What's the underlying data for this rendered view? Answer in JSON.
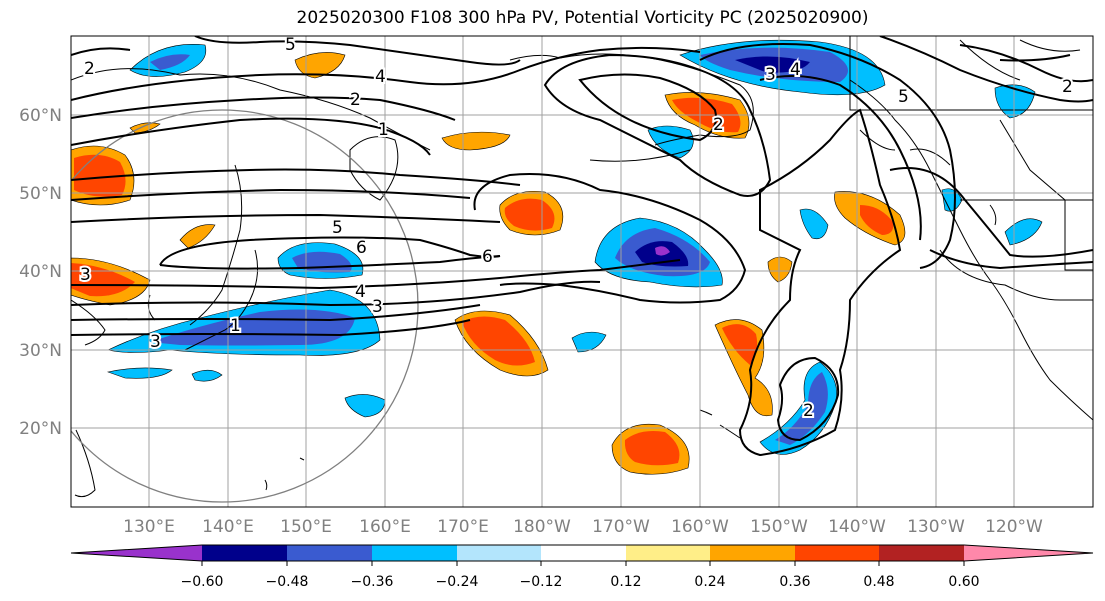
{
  "title": "2025020300 F108 300 hPa PV, Potential Vorticity PC (2025020900)",
  "map": {
    "lat_labels": [
      "60°N",
      "50°N",
      "40°N",
      "30°N",
      "20°N"
    ],
    "lon_labels": [
      "130°E",
      "140°E",
      "150°E",
      "160°E",
      "170°E",
      "180°W",
      "170°W",
      "160°W",
      "150°W",
      "140°W",
      "130°W",
      "120°W"
    ],
    "contour_labels": [
      "5",
      "2",
      "4",
      "2",
      "1",
      "5",
      "6",
      "6",
      "4",
      "3",
      "1",
      "3",
      "3",
      "4",
      "5",
      "2",
      "2",
      "2",
      "3"
    ],
    "colors": {
      "land_outline": "#000000",
      "contour": "#000000",
      "grid": "#a0a0a0",
      "tick_label": "#808080"
    }
  },
  "colorbar": {
    "tick_labels": [
      "−0.60",
      "−0.48",
      "−0.36",
      "−0.24",
      "−0.12",
      "0.12",
      "0.24",
      "0.36",
      "0.48",
      "0.60"
    ],
    "colors": [
      "#9932cc",
      "#00008b",
      "#3a5bd0",
      "#00bfff",
      "#b3e5fc",
      "#ffffff",
      "#ffee88",
      "#ffa500",
      "#ff4500",
      "#b22222",
      "#ff88aa"
    ]
  }
}
